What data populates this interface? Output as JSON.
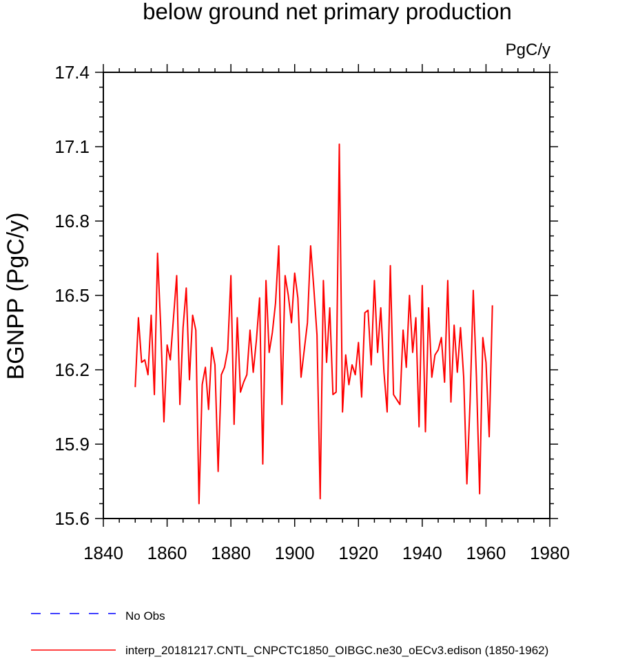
{
  "chart_data": {
    "type": "line",
    "title": "below ground net primary production",
    "units": "PgC/y",
    "ylabel": "BGNPP  (PgC/y)",
    "xlabel": "",
    "xlim": [
      1840,
      1980
    ],
    "ylim": [
      15.6,
      17.4
    ],
    "xticks": [
      "1840",
      "1860",
      "1880",
      "1900",
      "1920",
      "1940",
      "1960",
      "1980"
    ],
    "yticks": [
      "15.6",
      "15.9",
      "16.2",
      "16.5",
      "16.8",
      "17.1",
      "17.4"
    ],
    "legend": [
      {
        "label": "No Obs",
        "style": "dashed",
        "color": "#0000ff"
      },
      {
        "label": "interp_20181217.CNTL_CNPCTC1850_OIBGC.ne30_oECv3.edison (1850-1962)",
        "style": "solid",
        "color": "#ff0000"
      }
    ],
    "series": [
      {
        "name": "interp_20181217.CNTL_CNPCTC1850_OIBGC.ne30_oECv3.edison (1850-1962)",
        "color": "#ff0000",
        "x_start": 1850,
        "x_step": 1,
        "values": [
          16.13,
          16.41,
          16.23,
          16.24,
          16.18,
          16.42,
          16.1,
          16.67,
          16.37,
          15.99,
          16.3,
          16.24,
          16.41,
          16.58,
          16.06,
          16.37,
          16.53,
          16.16,
          16.42,
          16.36,
          15.66,
          16.14,
          16.21,
          16.04,
          16.29,
          16.22,
          15.79,
          16.18,
          16.21,
          16.28,
          16.58,
          15.98,
          16.41,
          16.11,
          16.15,
          16.18,
          16.36,
          16.19,
          16.32,
          16.49,
          15.82,
          16.56,
          16.27,
          16.35,
          16.47,
          16.7,
          16.06,
          16.58,
          16.5,
          16.39,
          16.59,
          16.49,
          16.17,
          16.28,
          16.39,
          16.7,
          16.53,
          16.34,
          15.68,
          16.56,
          16.23,
          16.45,
          16.1,
          16.11,
          17.11,
          16.03,
          16.26,
          16.14,
          16.22,
          16.18,
          16.31,
          16.09,
          16.43,
          16.44,
          16.22,
          16.56,
          16.27,
          16.45,
          16.19,
          16.03,
          16.62,
          16.1,
          16.08,
          16.06,
          16.36,
          16.21,
          16.5,
          16.27,
          16.41,
          15.97,
          16.54,
          15.95,
          16.45,
          16.17,
          16.26,
          16.28,
          16.33,
          16.15,
          16.56,
          16.07,
          16.38,
          16.19,
          16.37,
          16.17,
          15.74,
          16.07,
          16.52,
          16.17,
          15.7,
          16.33,
          16.23,
          15.93,
          16.46
        ]
      }
    ]
  }
}
